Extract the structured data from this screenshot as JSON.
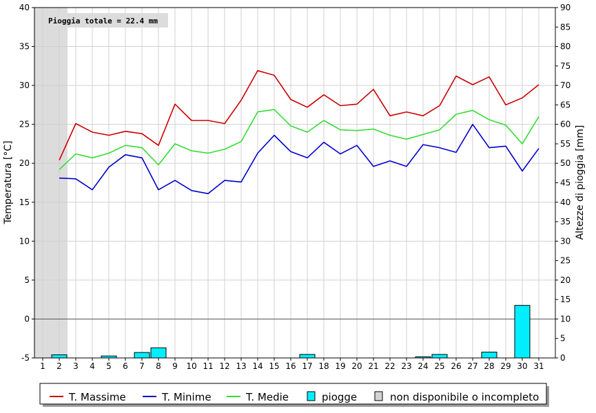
{
  "chart_data": {
    "type": "line",
    "annotation": "Pioggia totale = 22.4 mm",
    "ylabel_left": "Temperatura [°C]",
    "ylabel_right": "Altezze di pioggia [mm]",
    "ylim_left": [
      -5,
      40
    ],
    "ylim_right": [
      0,
      90
    ],
    "yticks_left": [
      -5,
      0,
      5,
      10,
      15,
      20,
      25,
      30,
      35,
      40
    ],
    "yticks_right": [
      0,
      5,
      10,
      15,
      20,
      25,
      30,
      35,
      40,
      45,
      50,
      55,
      60,
      65,
      70,
      75,
      80,
      85,
      90
    ],
    "grid": true,
    "legend_position": "bottom",
    "x": [
      1,
      2,
      3,
      4,
      5,
      6,
      7,
      8,
      9,
      10,
      11,
      12,
      13,
      14,
      15,
      16,
      17,
      18,
      19,
      20,
      21,
      22,
      23,
      24,
      25,
      26,
      27,
      28,
      29,
      30,
      31
    ],
    "unavailable_days": [
      1,
      2
    ],
    "series": [
      {
        "name": "T. Massime",
        "color": "#cc0000",
        "values": [
          null,
          20.4,
          25.1,
          24.0,
          23.6,
          24.1,
          23.8,
          22.3,
          27.6,
          25.5,
          25.5,
          25.1,
          28.1,
          31.9,
          31.3,
          28.2,
          27.2,
          28.8,
          27.4,
          27.6,
          29.5,
          26.1,
          26.6,
          26.1,
          27.4,
          31.2,
          30.1,
          31.1,
          27.5,
          28.4,
          30.1
        ]
      },
      {
        "name": "T. Minime",
        "color": "#0000cc",
        "values": [
          null,
          18.1,
          18.0,
          16.6,
          19.5,
          21.1,
          20.7,
          16.6,
          17.8,
          16.5,
          16.1,
          17.8,
          17.6,
          21.3,
          23.6,
          21.5,
          20.7,
          22.7,
          21.2,
          22.3,
          19.6,
          20.3,
          19.6,
          22.4,
          22.0,
          21.4,
          25.0,
          22.0,
          22.2,
          19.0,
          21.9
        ]
      },
      {
        "name": "T. Medie",
        "color": "#33dd33",
        "values": [
          null,
          19.2,
          21.2,
          20.7,
          21.3,
          22.3,
          22.0,
          19.8,
          22.5,
          21.6,
          21.3,
          21.8,
          22.8,
          26.6,
          26.9,
          24.8,
          24.0,
          25.5,
          24.3,
          24.2,
          24.4,
          23.6,
          23.1,
          23.7,
          24.3,
          26.3,
          26.8,
          25.6,
          24.9,
          22.5,
          26.0
        ]
      }
    ],
    "rain": {
      "name": "piogge",
      "color": "#00eeff",
      "values": [
        0,
        0.8,
        0,
        0,
        0.5,
        0,
        1.4,
        2.6,
        0,
        0,
        0,
        0,
        0,
        0,
        0,
        0,
        0.9,
        0,
        0,
        0,
        0,
        0,
        0,
        0.3,
        0.9,
        0,
        0,
        1.5,
        0,
        13.5,
        0
      ]
    },
    "unavailable_label": "non disponibile o incompleto"
  }
}
